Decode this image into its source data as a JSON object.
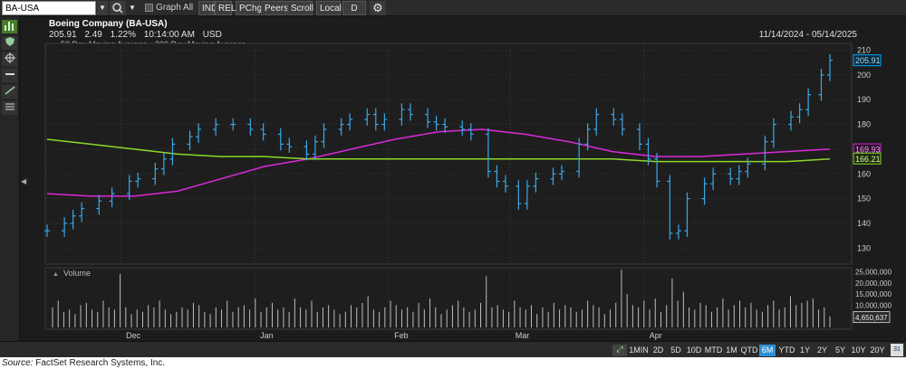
{
  "toolbar": {
    "ticker": "BA-USA",
    "graph_all": "Graph All",
    "ind": "IND",
    "rel": "REL",
    "pchg": "PChg",
    "peers": "Peers",
    "scroll": "Scroll",
    "local": "Local",
    "frequency": "D",
    "icons": [
      "chevron-down-icon",
      "search-icon",
      "chevron-down-icon",
      "gear-icon"
    ]
  },
  "left_rail": {
    "icons": [
      "bar-chart-icon",
      "shield-icon",
      "crosshair-icon",
      "horizontal-line-icon",
      "trend-line-icon",
      "grid-lines-icon"
    ]
  },
  "header": {
    "company": "Boeing Company (BA-USA)",
    "price": "205.91",
    "change": "2.49",
    "change_pct": "1.22%",
    "time": "10:14:00 AM",
    "currency": "USD",
    "date_range": "11/14/2024 - 05/14/2025",
    "legend_50": "50 Day Moving Average",
    "legend_200": "200 Day Moving Average"
  },
  "colors": {
    "background": "#1c1c1c",
    "price_bars": "#3aa8e8",
    "ma50": "#d92ad9",
    "ma200": "#8bd92a",
    "volume": "#bdbdbd",
    "active_range": "#2f8fd6"
  },
  "chart_data": {
    "type": "bar",
    "title": "Boeing Company (BA-USA)",
    "price_axis": {
      "ticks": [
        130,
        140,
        150,
        160,
        170,
        180,
        190,
        200,
        210
      ],
      "ylim": [
        125,
        212
      ]
    },
    "x_ticks": [
      "Dec",
      "Jan",
      "Feb",
      "Mar",
      "Apr"
    ],
    "badges": {
      "last": "205.91",
      "ma50": "169.93",
      "ma200": "166.21",
      "volume": "4,650,637"
    },
    "price_series": [
      {
        "date": "2024-11-14",
        "value": 137
      },
      {
        "date": "2024-11-18",
        "value": 140
      },
      {
        "date": "2024-11-20",
        "value": 143
      },
      {
        "date": "2024-11-22",
        "value": 146
      },
      {
        "date": "2024-11-26",
        "value": 149
      },
      {
        "date": "2024-11-29",
        "value": 152
      },
      {
        "date": "2024-12-03",
        "value": 157
      },
      {
        "date": "2024-12-05",
        "value": 158
      },
      {
        "date": "2024-12-09",
        "value": 162
      },
      {
        "date": "2024-12-11",
        "value": 166
      },
      {
        "date": "2024-12-13",
        "value": 172
      },
      {
        "date": "2024-12-17",
        "value": 175
      },
      {
        "date": "2024-12-19",
        "value": 178
      },
      {
        "date": "2024-12-23",
        "value": 180
      },
      {
        "date": "2024-12-27",
        "value": 180
      },
      {
        "date": "2024-12-31",
        "value": 178
      },
      {
        "date": "2025-01-03",
        "value": 176
      },
      {
        "date": "2025-01-07",
        "value": 172
      },
      {
        "date": "2025-01-09",
        "value": 171
      },
      {
        "date": "2025-01-13",
        "value": 168
      },
      {
        "date": "2025-01-15",
        "value": 173
      },
      {
        "date": "2025-01-17",
        "value": 178
      },
      {
        "date": "2025-01-21",
        "value": 180
      },
      {
        "date": "2025-01-23",
        "value": 182
      },
      {
        "date": "2025-01-27",
        "value": 184
      },
      {
        "date": "2025-01-29",
        "value": 180
      },
      {
        "date": "2025-01-31",
        "value": 182
      },
      {
        "date": "2025-02-04",
        "value": 186
      },
      {
        "date": "2025-02-06",
        "value": 184
      },
      {
        "date": "2025-02-10",
        "value": 181
      },
      {
        "date": "2025-02-12",
        "value": 180
      },
      {
        "date": "2025-02-14",
        "value": 179
      },
      {
        "date": "2025-02-18",
        "value": 178
      },
      {
        "date": "2025-02-20",
        "value": 176
      },
      {
        "date": "2025-02-24",
        "value": 161
      },
      {
        "date": "2025-02-26",
        "value": 157
      },
      {
        "date": "2025-02-28",
        "value": 155
      },
      {
        "date": "2025-03-03",
        "value": 148
      },
      {
        "date": "2025-03-05",
        "value": 155
      },
      {
        "date": "2025-03-07",
        "value": 158
      },
      {
        "date": "2025-03-11",
        "value": 160
      },
      {
        "date": "2025-03-13",
        "value": 161
      },
      {
        "date": "2025-03-17",
        "value": 172
      },
      {
        "date": "2025-03-19",
        "value": 178
      },
      {
        "date": "2025-03-21",
        "value": 184
      },
      {
        "date": "2025-03-25",
        "value": 182
      },
      {
        "date": "2025-03-27",
        "value": 178
      },
      {
        "date": "2025-03-31",
        "value": 172
      },
      {
        "date": "2025-04-02",
        "value": 166
      },
      {
        "date": "2025-04-04",
        "value": 157
      },
      {
        "date": "2025-04-07",
        "value": 136
      },
      {
        "date": "2025-04-09",
        "value": 137
      },
      {
        "date": "2025-04-11",
        "value": 150
      },
      {
        "date": "2025-04-15",
        "value": 156
      },
      {
        "date": "2025-04-17",
        "value": 160
      },
      {
        "date": "2025-04-21",
        "value": 158
      },
      {
        "date": "2025-04-23",
        "value": 161
      },
      {
        "date": "2025-04-25",
        "value": 164
      },
      {
        "date": "2025-04-29",
        "value": 173
      },
      {
        "date": "2025-05-01",
        "value": 180
      },
      {
        "date": "2025-05-05",
        "value": 183
      },
      {
        "date": "2025-05-07",
        "value": 186
      },
      {
        "date": "2025-05-09",
        "value": 192
      },
      {
        "date": "2025-05-12",
        "value": 200
      },
      {
        "date": "2025-05-14",
        "value": 205.91
      }
    ],
    "series": [
      {
        "name": "50 Day Moving Average",
        "values": [
          152,
          151,
          151,
          153,
          158,
          163,
          166,
          170,
          174,
          177,
          178,
          176,
          173,
          169,
          167,
          167,
          168,
          169,
          170
        ]
      },
      {
        "name": "200 Day Moving Average",
        "values": [
          174,
          172,
          170,
          168,
          167,
          167,
          166,
          166,
          166,
          166,
          166,
          166,
          166,
          166,
          165,
          165,
          165,
          165,
          166
        ]
      }
    ],
    "volume": {
      "ylabel": "Volume",
      "ticks": [
        "5,000,000",
        "10,000,000",
        "15,000,000",
        "20,000,000",
        "25,000,000"
      ],
      "ylim": [
        0,
        26000000
      ],
      "values": [
        9,
        12,
        7,
        8,
        6,
        10,
        11,
        8,
        7,
        12,
        9,
        8,
        24,
        9,
        6,
        8,
        7,
        10,
        9,
        12,
        8,
        6,
        7,
        9,
        8,
        11,
        10,
        7,
        6,
        9,
        8,
        12,
        7,
        9,
        10,
        8,
        13,
        7,
        9,
        11,
        8,
        9,
        7,
        13,
        9,
        8,
        12,
        7,
        9,
        10,
        8,
        6,
        7,
        10,
        9,
        11,
        14,
        8,
        7,
        9,
        12,
        10,
        8,
        9,
        7,
        11,
        8,
        13,
        9,
        6,
        8,
        10,
        12,
        9,
        7,
        8,
        11,
        23,
        9,
        10,
        8,
        7,
        12,
        9,
        8,
        10,
        6,
        9,
        7,
        11,
        8,
        10,
        9,
        7,
        8,
        12,
        10,
        9,
        6,
        8,
        11,
        26,
        15,
        10,
        9,
        12,
        8,
        13,
        7,
        10,
        22,
        12,
        16,
        9,
        8,
        11,
        10,
        7,
        9,
        13,
        8,
        10,
        12,
        9,
        11,
        8,
        7,
        10,
        12,
        8,
        9,
        14,
        10,
        11,
        12,
        13,
        8,
        9,
        5
      ]
    }
  },
  "bottom_bar": {
    "ranges": [
      "1MIN",
      "2D",
      "5D",
      "10D",
      "MTD",
      "1M",
      "QTD",
      "6M",
      "YTD",
      "1Y",
      "2Y",
      "5Y",
      "10Y",
      "20Y"
    ],
    "active": "6M",
    "calendar": "31"
  },
  "source": "FactSet Research Systems, Inc.",
  "source_label": "Source:"
}
